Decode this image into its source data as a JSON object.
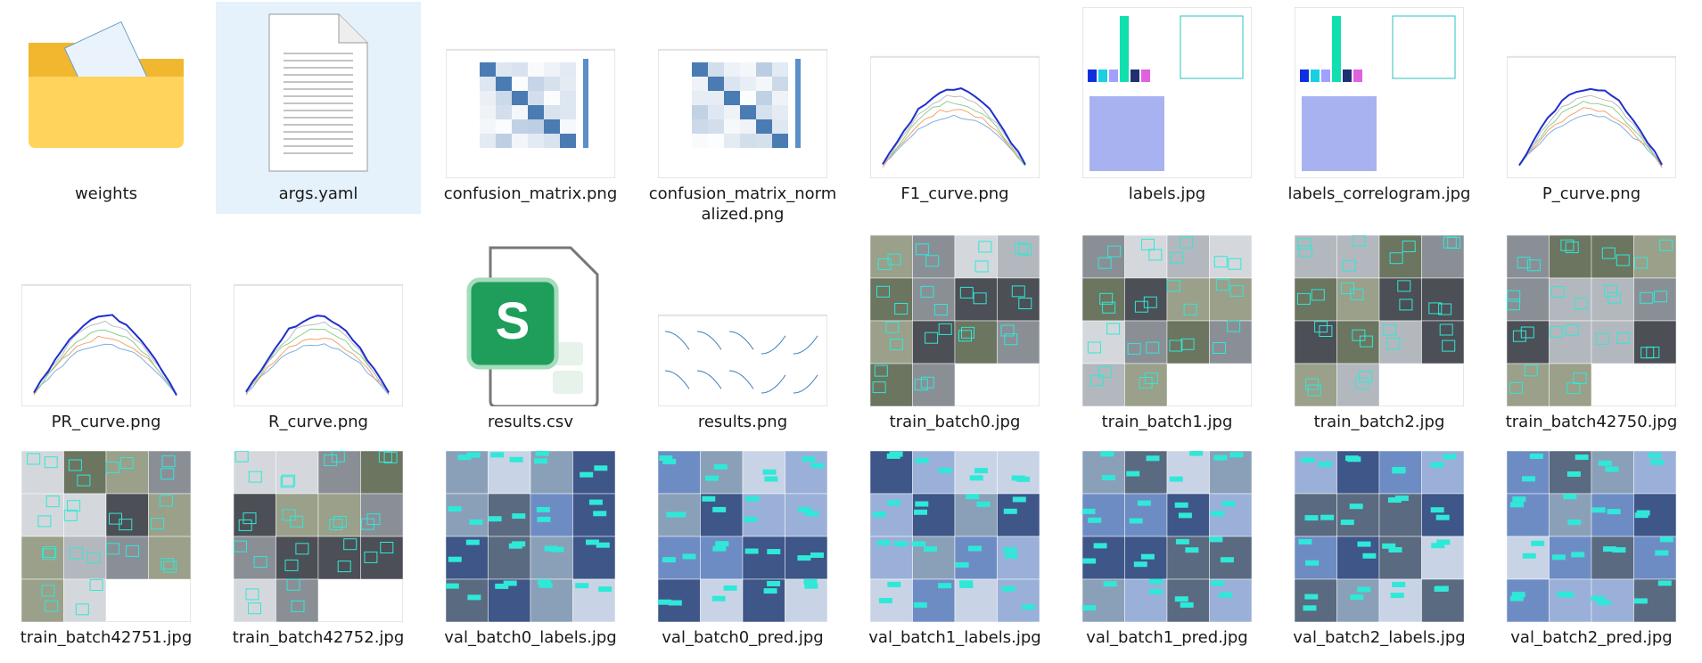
{
  "files": [
    "weights",
    "args.yaml",
    "confusion_matrix.png",
    "confusion_matrix_normalized.png",
    "F1_curve.png",
    "labels.jpg",
    "labels_correlogram.jpg",
    "P_curve.png",
    "PR_curve.png",
    "R_curve.png",
    "results.csv",
    "results.png",
    "train_batch0.jpg",
    "train_batch1.jpg",
    "train_batch2.jpg",
    "train_batch42750.jpg",
    "train_batch42751.jpg",
    "train_batch42752.jpg",
    "val_batch0_labels.jpg",
    "val_batch0_pred.jpg",
    "val_batch1_labels.jpg",
    "val_batch1_pred.jpg",
    "val_batch2_labels.jpg",
    "val_batch2_pred.jpg"
  ]
}
